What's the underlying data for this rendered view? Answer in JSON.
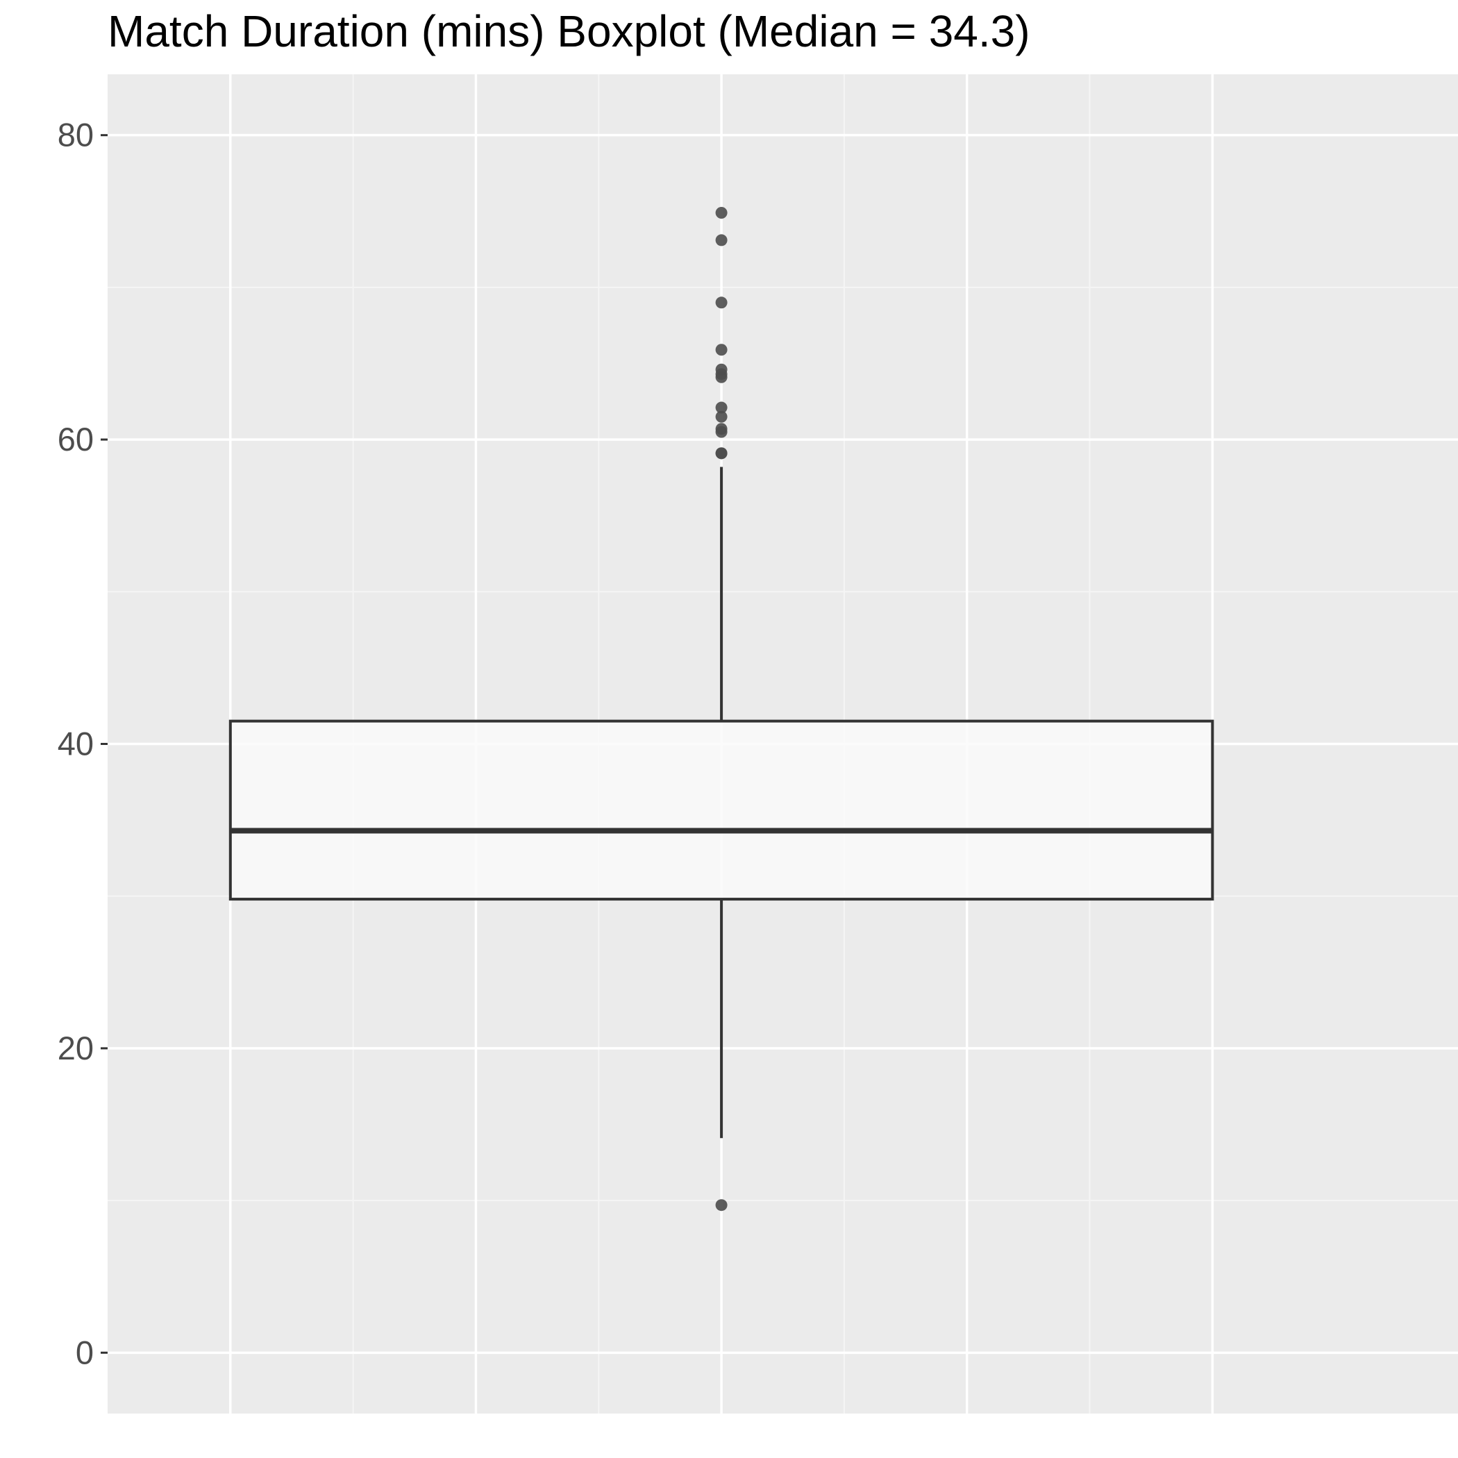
{
  "chart_data": {
    "type": "boxplot",
    "title": "Match Duration (mins) Boxplot (Median = 34.3)",
    "xlabel": "",
    "ylabel": "",
    "ylim": [
      -4,
      84
    ],
    "xlim": [
      -0.5,
      0.6
    ],
    "y_ticks": [
      0,
      20,
      40,
      60,
      80
    ],
    "y_tick_labels": [
      "0",
      "20",
      "40",
      "60",
      "80"
    ],
    "x_gridlines": [
      -0.4,
      -0.2,
      0.0,
      0.2,
      0.4
    ],
    "grid": true,
    "box": {
      "x_left": -0.4,
      "x_right": 0.4,
      "center": 0.0,
      "q1": 29.8,
      "median": 34.3,
      "q3": 41.5,
      "whisker_low": 14.1,
      "whisker_high": 58.2
    },
    "outliers": [
      9.7,
      59.1,
      59.1,
      60.5,
      60.7,
      61.5,
      62.1,
      64.1,
      64.3,
      64.6,
      65.9,
      69.0,
      73.1,
      74.9
    ],
    "colors": {
      "panel_background": "#ebebeb",
      "grid_major": "#ffffff",
      "grid_minor": "#f5f5f5",
      "box_fill": "#fafafa",
      "box_line": "#333333",
      "outlier": "#4d4d4d"
    }
  }
}
